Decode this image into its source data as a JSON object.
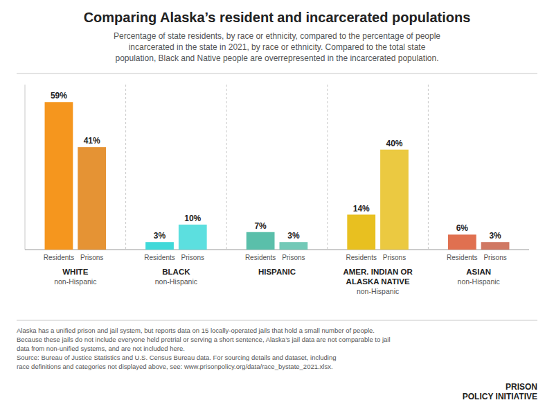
{
  "chart_data": {
    "type": "bar",
    "title": "Comparing Alaska’s resident and incarcerated populations",
    "subtitle": "Percentage of state residents, by race or ethnicity, compared to the percentage of people\nincarcerated in the state in 2021, by race or ethnicity. Compared to the total state\npopulation, Black and Native people are overrepresented in the incarcerated population.",
    "categories": [
      "WHITE",
      "BLACK",
      "HISPANIC",
      "AMER. INDIAN OR\nALASKA NATIVE",
      "ASIAN"
    ],
    "category_sublabels": [
      "non-Hispanic",
      "non-Hispanic",
      null,
      "non-Hispanic",
      "non-Hispanic"
    ],
    "series": [
      {
        "name": "Residents",
        "values": [
          59,
          3,
          7,
          14,
          6
        ],
        "value_labels": [
          "59%",
          "3%",
          "7%",
          "14%",
          "6%"
        ],
        "colors": [
          "#f5961e",
          "#40d9d9",
          "#5abfaa",
          "#e8c020",
          "#e07050"
        ]
      },
      {
        "name": "Prisons",
        "values": [
          41,
          10,
          3,
          40,
          3
        ],
        "value_labels": [
          "41%",
          "10%",
          "3%",
          "40%",
          "3%"
        ],
        "colors": [
          "#e08010",
          "#40d9d9",
          "#5abfaa",
          "#e8c020",
          "#c86048"
        ]
      }
    ],
    "ylim": [
      0,
      66
    ],
    "tick_labels": false,
    "grid": false,
    "data_labels": true,
    "notes": [
      "Alaska has a unified prison and jail system, but reports data on 15 locally-operated jails that hold a small number of people.",
      "Because these jails do not include everyone held pretrial or serving a short sentence, Alaska’s jail data are not comparable to jail",
      "data from non-unified systems, and are not included here.",
      "Source: Bureau of Justice Statistics and U.S. Census Bureau data. For sourcing details and dataset, including",
      "race definitions and categories not displayed above, see: www.prisonpolicy.org/data/race_bystate_2021.xlsx."
    ],
    "credit": "PRISON\nPOLICY INITIATIVE"
  }
}
